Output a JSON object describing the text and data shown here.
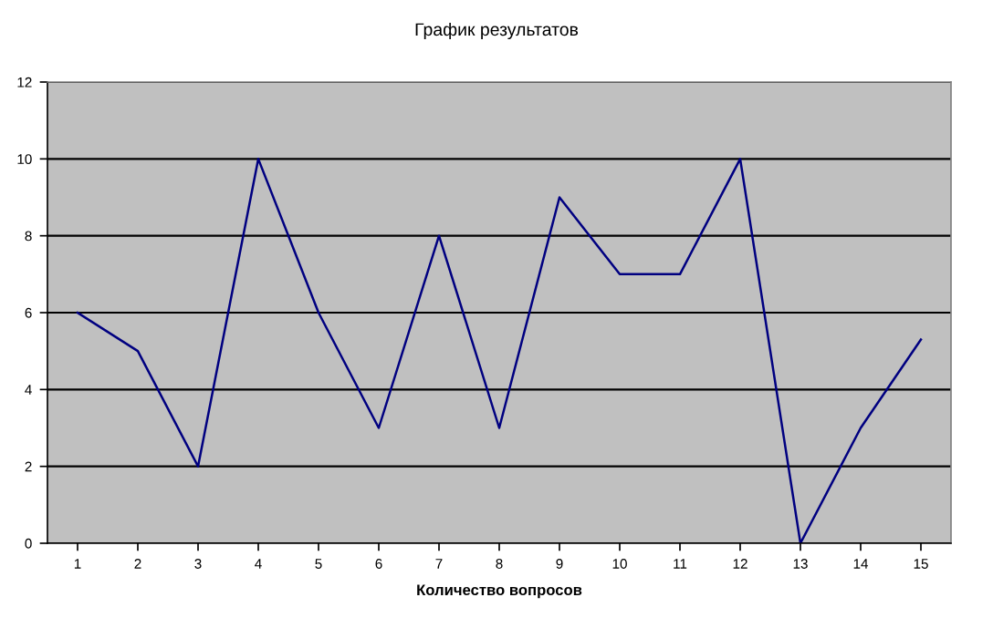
{
  "chart_data": {
    "type": "line",
    "title": "График результатов",
    "xlabel": "Количество вопросов",
    "categories": [
      "1",
      "2",
      "3",
      "4",
      "5",
      "6",
      "7",
      "8",
      "9",
      "10",
      "11",
      "12",
      "13",
      "14",
      "15"
    ],
    "series": [
      {
        "color": "#000080",
        "values": [
          6,
          5,
          2,
          10,
          6,
          3,
          8,
          3,
          9,
          7,
          7,
          10,
          0,
          3,
          5.3
        ]
      }
    ],
    "ylim": [
      0,
      12
    ],
    "yticks": [
      0,
      2,
      4,
      6,
      8,
      10,
      12
    ],
    "grid": "y",
    "legend": false,
    "marker": "none",
    "line_style": "solid"
  }
}
